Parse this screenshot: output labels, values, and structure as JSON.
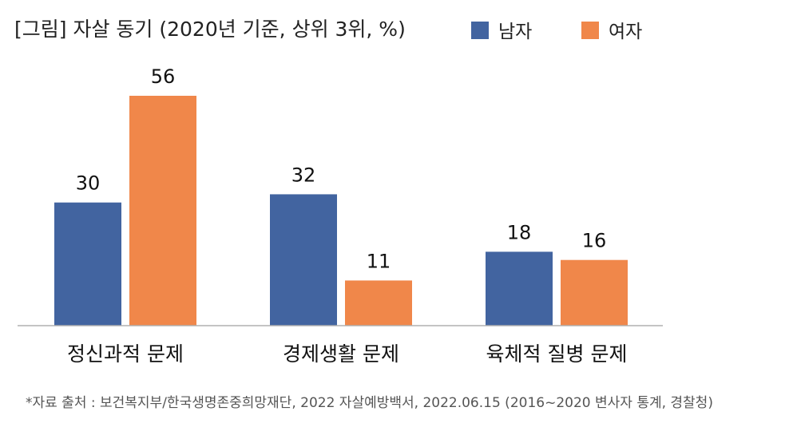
{
  "chart_data": {
    "type": "bar",
    "title": "[그림] 자살 동기 (2020년 기준, 상위 3위, %)",
    "categories": [
      "정신과적 문제",
      "경제생활 문제",
      "육체적 질병 문제"
    ],
    "series": [
      {
        "name": "남자",
        "color": "#4264A0",
        "values": [
          30,
          32,
          18
        ]
      },
      {
        "name": "여자",
        "color": "#F0874A",
        "values": [
          56,
          11,
          16
        ]
      }
    ],
    "ylim": [
      0,
      60
    ],
    "grid": false,
    "legend": "top-right",
    "source": "*자료 출처 : 보건복지부/한국생명존중희망재단, 2022 자살예방백서, 2022.06.15 (2016~2020 변사자 통계, 경찰청)"
  }
}
